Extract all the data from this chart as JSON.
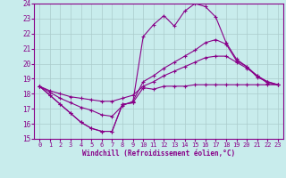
{
  "xlabel": "Windchill (Refroidissement éolien,°C)",
  "xlim": [
    -0.5,
    23.5
  ],
  "ylim": [
    15,
    24
  ],
  "xticks": [
    0,
    1,
    2,
    3,
    4,
    5,
    6,
    7,
    8,
    9,
    10,
    11,
    12,
    13,
    14,
    15,
    16,
    17,
    18,
    19,
    20,
    21,
    22,
    23
  ],
  "yticks": [
    15,
    16,
    17,
    18,
    19,
    20,
    21,
    22,
    23,
    24
  ],
  "bg_color": "#c8ecec",
  "line_color": "#880088",
  "grid_color": "#aacccc",
  "line1_x": [
    0,
    1,
    2,
    3,
    4,
    5,
    6,
    7,
    8,
    9,
    10,
    11,
    12,
    13,
    14,
    15,
    16,
    17,
    18,
    19,
    20,
    21,
    22,
    23
  ],
  "line1_y": [
    18.5,
    17.9,
    17.3,
    16.7,
    16.1,
    15.7,
    15.5,
    15.5,
    17.3,
    17.4,
    18.4,
    18.3,
    18.5,
    18.5,
    18.5,
    18.6,
    18.6,
    18.6,
    18.6,
    18.6,
    18.6,
    18.6,
    18.6,
    18.6
  ],
  "line2_x": [
    0,
    1,
    2,
    3,
    4,
    5,
    6,
    7,
    8,
    9,
    10,
    11,
    12,
    13,
    14,
    15,
    16,
    17,
    18,
    19,
    20,
    21,
    22,
    23
  ],
  "line2_y": [
    18.5,
    17.9,
    17.3,
    16.7,
    16.1,
    15.7,
    15.5,
    15.5,
    17.3,
    17.4,
    21.8,
    22.6,
    23.2,
    22.5,
    23.5,
    24.0,
    23.8,
    23.1,
    21.4,
    20.3,
    19.8,
    19.2,
    18.7,
    18.6
  ],
  "line3_x": [
    0,
    1,
    2,
    3,
    4,
    5,
    6,
    7,
    8,
    9,
    10,
    11,
    12,
    13,
    14,
    15,
    16,
    17,
    18,
    19,
    20,
    21,
    22,
    23
  ],
  "line3_y": [
    18.5,
    18.1,
    17.7,
    17.4,
    17.1,
    16.9,
    16.6,
    16.5,
    17.2,
    17.5,
    18.8,
    19.2,
    19.7,
    20.1,
    20.5,
    20.9,
    21.4,
    21.6,
    21.3,
    20.2,
    19.8,
    19.1,
    18.8,
    18.6
  ],
  "line4_x": [
    0,
    1,
    2,
    3,
    4,
    5,
    6,
    7,
    8,
    9,
    10,
    11,
    12,
    13,
    14,
    15,
    16,
    17,
    18,
    19,
    20,
    21,
    22,
    23
  ],
  "line4_y": [
    18.5,
    18.2,
    18.0,
    17.8,
    17.7,
    17.6,
    17.5,
    17.5,
    17.7,
    17.9,
    18.5,
    18.8,
    19.2,
    19.5,
    19.8,
    20.1,
    20.4,
    20.5,
    20.5,
    20.1,
    19.7,
    19.2,
    18.8,
    18.6
  ]
}
